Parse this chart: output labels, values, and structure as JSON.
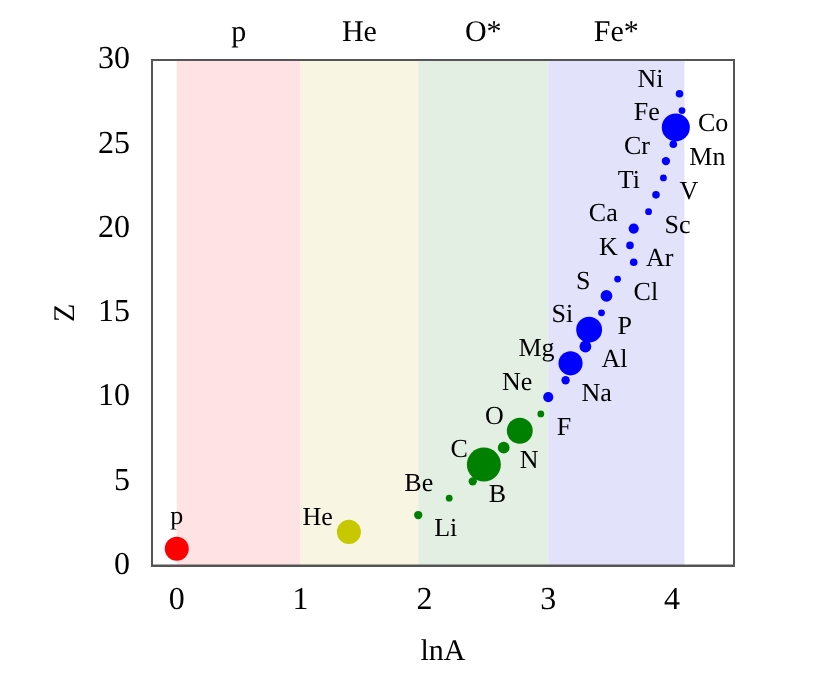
{
  "chart_data": {
    "type": "bubble",
    "xlabel": "lnA",
    "ylabel": "Z",
    "xlim": [
      -0.2,
      4.5
    ],
    "ylim": [
      0,
      30
    ],
    "xticks": [
      0,
      1,
      2,
      3,
      4
    ],
    "yticks": [
      0,
      5,
      10,
      15,
      20,
      25,
      30
    ],
    "grid": false,
    "legend": false,
    "bands": [
      {
        "axis": "x",
        "from": 0,
        "to": 1,
        "label": "p",
        "color": "#ffe2e4"
      },
      {
        "axis": "x",
        "from": 1,
        "to": 1.95,
        "label": "He",
        "color": "#f8f6e2"
      },
      {
        "axis": "x",
        "from": 1.95,
        "to": 3,
        "label": "O*",
        "color": "#e2efe2"
      },
      {
        "axis": "x",
        "from": 3,
        "to": 4.1,
        "label": "Fe*",
        "color": "#e2e2fb"
      }
    ],
    "series": [
      {
        "color": "#ff0000",
        "x": [
          0
        ],
        "values": [
          1
        ],
        "sizes": [
          0.5
        ]
      },
      {
        "color": "#c8c800",
        "x": [
          1.39
        ],
        "values": [
          2
        ],
        "sizes": [
          0.5
        ]
      },
      {
        "color": "#008000",
        "x": [
          1.95,
          2.2,
          2.39,
          2.48,
          2.64,
          2.77,
          2.94
        ],
        "values": [
          3,
          4,
          5,
          6,
          7,
          8,
          9
        ],
        "sizes": [
          0.06,
          0.04,
          0.06,
          1,
          0.12,
          0.58,
          0.04
        ]
      },
      {
        "color": "#0000ff",
        "x": [
          3.0,
          3.14,
          3.18,
          3.3,
          3.33,
          3.43,
          3.47,
          3.56,
          3.69,
          3.66,
          3.69,
          3.81,
          3.87,
          3.93,
          3.95,
          4.01,
          4.03,
          4.08,
          4.06
        ],
        "values": [
          10,
          11,
          12,
          13,
          14,
          15,
          16,
          17,
          18,
          19,
          20,
          21,
          22,
          23,
          24,
          25,
          26,
          27,
          28
        ],
        "sizes": [
          0.09,
          0.06,
          0.5,
          0.12,
          0.58,
          0.04,
          0.12,
          0.04,
          0.05,
          0.05,
          0.09,
          0.04,
          0.05,
          0.04,
          0.06,
          0.05,
          0.68,
          0.04,
          0.05
        ]
      }
    ],
    "annotations": [
      {
        "text": "p",
        "x": 0,
        "y": 1
      },
      {
        "text": "He",
        "x": 1.39,
        "y": 2
      },
      {
        "text": "Li",
        "x": 1.95,
        "y": 3
      },
      {
        "text": "Be",
        "x": 2.2,
        "y": 4
      },
      {
        "text": "B",
        "x": 2.39,
        "y": 5
      },
      {
        "text": "C",
        "x": 2.48,
        "y": 6
      },
      {
        "text": "N",
        "x": 2.64,
        "y": 7
      },
      {
        "text": "O",
        "x": 2.77,
        "y": 8
      },
      {
        "text": "F",
        "x": 2.94,
        "y": 9
      },
      {
        "text": "Ne",
        "x": 3.0,
        "y": 10
      },
      {
        "text": "Na",
        "x": 3.14,
        "y": 11
      },
      {
        "text": "Mg",
        "x": 3.18,
        "y": 12
      },
      {
        "text": "Al",
        "x": 3.3,
        "y": 13
      },
      {
        "text": "Si",
        "x": 3.33,
        "y": 14
      },
      {
        "text": "P",
        "x": 3.43,
        "y": 15
      },
      {
        "text": "S",
        "x": 3.47,
        "y": 16
      },
      {
        "text": "Cl",
        "x": 3.56,
        "y": 17
      },
      {
        "text": "K",
        "x": 3.69,
        "y": 18
      },
      {
        "text": "Ar",
        "x": 3.66,
        "y": 19
      },
      {
        "text": "Ca",
        "x": 3.69,
        "y": 20
      },
      {
        "text": "Sc",
        "x": 3.81,
        "y": 21
      },
      {
        "text": "Ti",
        "x": 3.87,
        "y": 22
      },
      {
        "text": "V",
        "x": 3.93,
        "y": 23
      },
      {
        "text": "Cr",
        "x": 3.95,
        "y": 24
      },
      {
        "text": "Mn",
        "x": 4.01,
        "y": 25
      },
      {
        "text": "Fe",
        "x": 4.03,
        "y": 26
      },
      {
        "text": "Co",
        "x": 4.08,
        "y": 27
      },
      {
        "text": "Ni",
        "x": 4.06,
        "y": 28
      }
    ]
  }
}
